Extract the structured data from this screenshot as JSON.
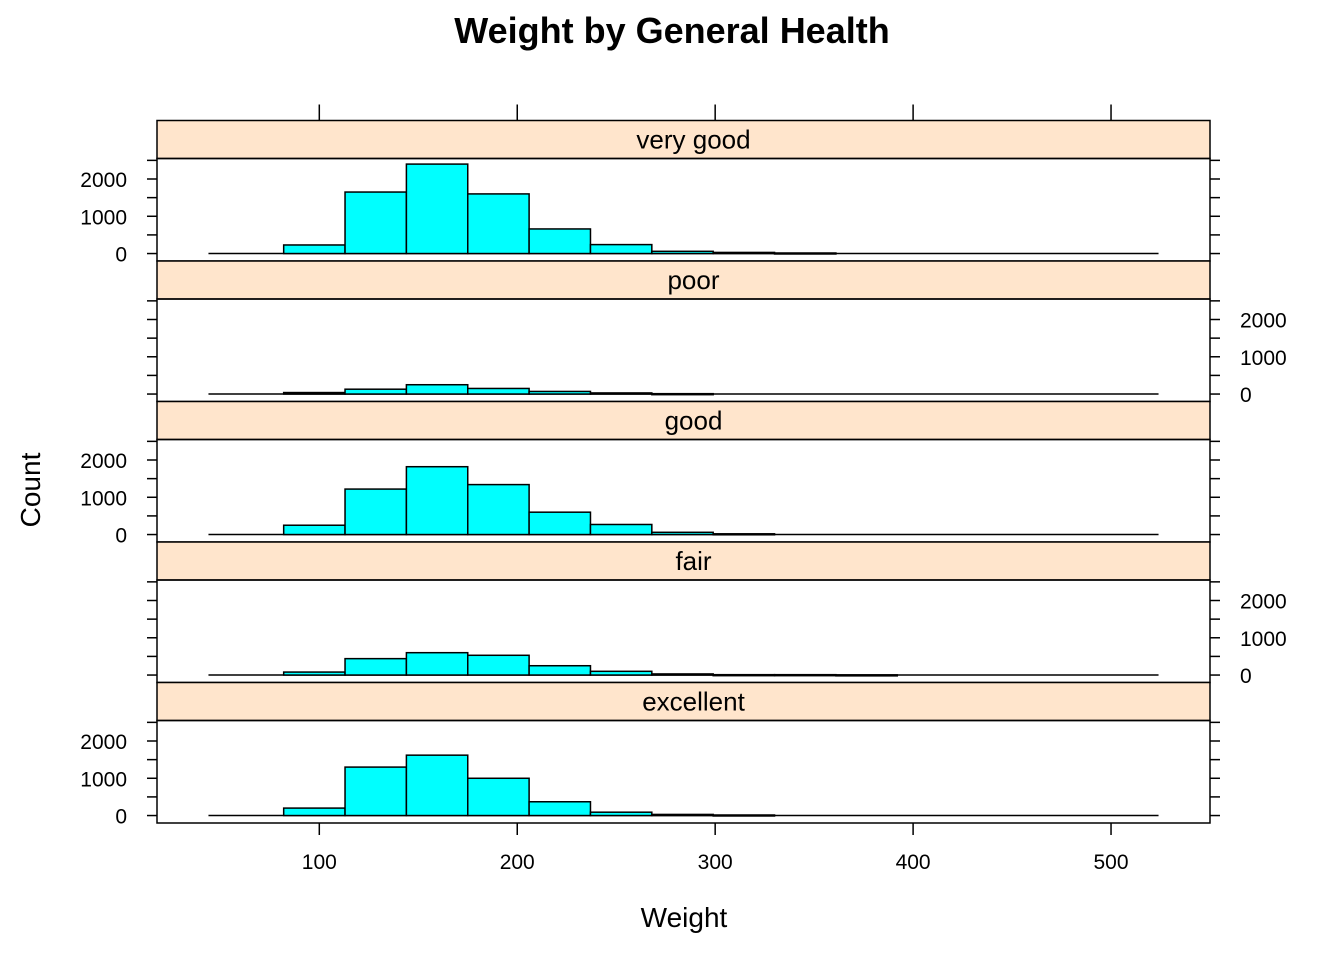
{
  "chart_data": {
    "type": "bar",
    "title": "Weight by General Health",
    "xlabel": "Weight",
    "ylabel": "Count",
    "xlim": [
      18,
      550
    ],
    "ylim": [
      -200,
      2550
    ],
    "x_ticks": [
      100,
      200,
      300,
      400,
      500
    ],
    "y_ticks": [
      0,
      1000,
      2000
    ],
    "bin_edges": [
      44,
      82,
      113,
      144,
      175,
      206,
      237,
      268,
      299,
      330,
      361,
      392,
      423,
      454,
      485,
      524
    ],
    "colors": {
      "bar_fill": "#00ffff",
      "bar_stroke": "#000000",
      "strip_fill": "#ffe5cc"
    },
    "panels": [
      {
        "name": "very good",
        "values": [
          0,
          230,
          1650,
          2400,
          1600,
          660,
          240,
          60,
          30,
          15,
          0,
          0,
          0,
          0,
          0
        ]
      },
      {
        "name": "poor",
        "values": [
          0,
          40,
          130,
          250,
          150,
          70,
          30,
          10,
          0,
          0,
          0,
          0,
          0,
          0,
          0
        ]
      },
      {
        "name": "good",
        "values": [
          0,
          250,
          1220,
          1820,
          1340,
          600,
          270,
          60,
          20,
          0,
          0,
          0,
          0,
          0,
          0
        ]
      },
      {
        "name": "fair",
        "values": [
          0,
          80,
          440,
          600,
          530,
          250,
          100,
          30,
          10,
          10,
          5,
          0,
          0,
          0,
          0
        ]
      },
      {
        "name": "excellent",
        "values": [
          0,
          200,
          1300,
          1620,
          1000,
          370,
          90,
          30,
          15,
          0,
          0,
          0,
          0,
          0,
          0
        ]
      }
    ]
  }
}
